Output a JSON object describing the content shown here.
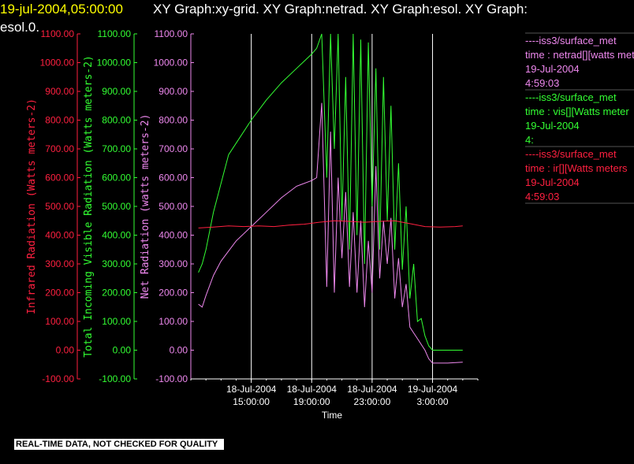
{
  "header": {
    "timestamp": "19-jul-2004,05:00:00",
    "title_rest": "XY Graph:xy-grid.  XY Graph:netrad.  XY Graph:esol.  XY Graph:",
    "title_line2": "esol.0."
  },
  "notice": "REAL-TIME DATA, NOT CHECKED FOR QUALITY",
  "colors": {
    "ir": "#ff2040",
    "vis": "#33ff33",
    "netrad": "#ee88ee",
    "timestamp": "#ffff00",
    "text": "#ffffff",
    "grid": "#ffffff",
    "legend_rule": "#555555"
  },
  "legend": [
    {
      "src": "----iss3/surface_met",
      "var": "time : netrad[][watts met",
      "date": "19-Jul-2004",
      "time": "4:59:03",
      "color": "#ee88ee"
    },
    {
      "src": "----iss3/surface_met",
      "var": "time : vis[][Watts meter",
      "date": "19-Jul-2004",
      "time": "4:",
      "color": "#33ff33"
    },
    {
      "src": "----iss3/surface_met",
      "var": "time : ir[][Watts meters",
      "date": "19-Jul-2004",
      "time": "4:59:03",
      "color": "#ff2040"
    }
  ],
  "chart_data": {
    "type": "line",
    "xlabel": "Time",
    "x_range_hours": [
      "18-Jul-2004 11:00",
      "19-Jul-2004 06:00"
    ],
    "x_ticks": [
      {
        "date": "18-Jul-2004",
        "time": "15:00:00"
      },
      {
        "date": "18-Jul-2004",
        "time": "19:00:00"
      },
      {
        "date": "18-Jul-2004",
        "time": "23:00:00"
      },
      {
        "date": "19-Jul-2004",
        "time": "3:00:00"
      }
    ],
    "y_ticks": [
      "-100.00",
      "0.00",
      "100.00",
      "200.00",
      "300.00",
      "400.00",
      "500.00",
      "600.00",
      "700.00",
      "800.00",
      "900.00",
      "1000.00",
      "1100.00"
    ],
    "ylim": [
      -100,
      1100
    ],
    "grid": "vertical lines at x ticks",
    "axes": [
      {
        "label": "Infrared Radiation (Watts meters-2)",
        "color": "#ff2040"
      },
      {
        "label": "Total Incoming Visible Radiation (Watts meters-2)",
        "color": "#33ff33"
      },
      {
        "label": "Net Radiation (watts meters-2)",
        "color": "#ee88ee"
      }
    ],
    "series": [
      {
        "key": "vis",
        "color": "#33ff33",
        "points": [
          [
            "18-Jul-2004 11:30",
            270
          ],
          [
            "18-Jul-2004 11:45",
            300
          ],
          [
            "18-Jul-2004 12:00",
            350
          ],
          [
            "18-Jul-2004 12:30",
            480
          ],
          [
            "18-Jul-2004 13:00",
            580
          ],
          [
            "18-Jul-2004 13:30",
            680
          ],
          [
            "18-Jul-2004 14:00",
            720
          ],
          [
            "18-Jul-2004 15:00",
            800
          ],
          [
            "18-Jul-2004 16:00",
            870
          ],
          [
            "18-Jul-2004 17:00",
            930
          ],
          [
            "18-Jul-2004 18:00",
            980
          ],
          [
            "18-Jul-2004 19:00",
            1030
          ],
          [
            "18-Jul-2004 19:20",
            1050
          ],
          [
            "18-Jul-2004 19:40",
            1100
          ],
          [
            "18-Jul-2004 20:00",
            600
          ],
          [
            "18-Jul-2004 20:15",
            1100
          ],
          [
            "18-Jul-2004 20:30",
            700
          ],
          [
            "18-Jul-2004 20:45",
            1100
          ],
          [
            "18-Jul-2004 21:00",
            450
          ],
          [
            "18-Jul-2004 21:15",
            950
          ],
          [
            "18-Jul-2004 21:30",
            350
          ],
          [
            "18-Jul-2004 21:45",
            1100
          ],
          [
            "18-Jul-2004 22:00",
            400
          ],
          [
            "18-Jul-2004 22:15",
            1080
          ],
          [
            "18-Jul-2004 22:30",
            300
          ],
          [
            "18-Jul-2004 22:45",
            1070
          ],
          [
            "18-Jul-2004 23:00",
            500
          ],
          [
            "18-Jul-2004 23:15",
            980
          ],
          [
            "18-Jul-2004 23:30",
            350
          ],
          [
            "18-Jul-2004 23:45",
            950
          ],
          [
            "19-Jul-2004 00:00",
            450
          ],
          [
            "19-Jul-2004 00:15",
            850
          ],
          [
            "19-Jul-2004 00:30",
            350
          ],
          [
            "19-Jul-2004 00:45",
            650
          ],
          [
            "19-Jul-2004 01:00",
            280
          ],
          [
            "19-Jul-2004 01:15",
            500
          ],
          [
            "19-Jul-2004 01:30",
            180
          ],
          [
            "19-Jul-2004 01:45",
            300
          ],
          [
            "19-Jul-2004 02:00",
            100
          ],
          [
            "19-Jul-2004 02:15",
            110
          ],
          [
            "19-Jul-2004 02:30",
            50
          ],
          [
            "19-Jul-2004 02:45",
            15
          ],
          [
            "19-Jul-2004 03:00",
            0
          ],
          [
            "19-Jul-2004 04:00",
            0
          ],
          [
            "19-Jul-2004 05:00",
            0
          ]
        ]
      },
      {
        "key": "netrad",
        "color": "#ee88ee",
        "points": [
          [
            "18-Jul-2004 11:30",
            160
          ],
          [
            "18-Jul-2004 11:45",
            150
          ],
          [
            "18-Jul-2004 12:00",
            190
          ],
          [
            "18-Jul-2004 12:30",
            260
          ],
          [
            "18-Jul-2004 13:00",
            310
          ],
          [
            "18-Jul-2004 14:00",
            380
          ],
          [
            "18-Jul-2004 15:00",
            430
          ],
          [
            "18-Jul-2004 16:00",
            480
          ],
          [
            "18-Jul-2004 17:00",
            530
          ],
          [
            "18-Jul-2004 18:00",
            570
          ],
          [
            "18-Jul-2004 19:00",
            590
          ],
          [
            "18-Jul-2004 19:20",
            600
          ],
          [
            "18-Jul-2004 19:40",
            860
          ],
          [
            "18-Jul-2004 20:00",
            220
          ],
          [
            "18-Jul-2004 20:15",
            760
          ],
          [
            "18-Jul-2004 20:30",
            200
          ],
          [
            "18-Jul-2004 20:45",
            600
          ],
          [
            "18-Jul-2004 21:00",
            320
          ],
          [
            "18-Jul-2004 21:15",
            550
          ],
          [
            "18-Jul-2004 21:30",
            220
          ],
          [
            "18-Jul-2004 21:45",
            480
          ],
          [
            "18-Jul-2004 22:00",
            200
          ],
          [
            "18-Jul-2004 22:15",
            450
          ],
          [
            "18-Jul-2004 22:30",
            150
          ],
          [
            "18-Jul-2004 22:45",
            380
          ],
          [
            "18-Jul-2004 23:00",
            200
          ],
          [
            "18-Jul-2004 23:15",
            640
          ],
          [
            "18-Jul-2004 23:30",
            250
          ],
          [
            "18-Jul-2004 23:45",
            450
          ],
          [
            "19-Jul-2004 00:00",
            300
          ],
          [
            "19-Jul-2004 00:15",
            460
          ],
          [
            "19-Jul-2004 00:30",
            180
          ],
          [
            "19-Jul-2004 00:45",
            320
          ],
          [
            "19-Jul-2004 01:00",
            150
          ],
          [
            "19-Jul-2004 01:15",
            230
          ],
          [
            "19-Jul-2004 01:30",
            80
          ],
          [
            "19-Jul-2004 01:45",
            60
          ],
          [
            "19-Jul-2004 02:00",
            40
          ],
          [
            "19-Jul-2004 02:30",
            0
          ],
          [
            "19-Jul-2004 02:45",
            -30
          ],
          [
            "19-Jul-2004 03:00",
            -45
          ],
          [
            "19-Jul-2004 04:00",
            -45
          ],
          [
            "19-Jul-2004 05:00",
            -42
          ]
        ]
      },
      {
        "key": "ir",
        "color": "#ff2040",
        "points": [
          [
            "18-Jul-2004 11:30",
            425
          ],
          [
            "18-Jul-2004 12:30",
            428
          ],
          [
            "18-Jul-2004 13:30",
            432
          ],
          [
            "18-Jul-2004 14:30",
            430
          ],
          [
            "18-Jul-2004 15:30",
            432
          ],
          [
            "18-Jul-2004 16:30",
            430
          ],
          [
            "18-Jul-2004 17:30",
            435
          ],
          [
            "18-Jul-2004 18:30",
            438
          ],
          [
            "18-Jul-2004 19:30",
            445
          ],
          [
            "18-Jul-2004 20:30",
            450
          ],
          [
            "18-Jul-2004 21:30",
            448
          ],
          [
            "18-Jul-2004 22:30",
            445
          ],
          [
            "18-Jul-2004 23:30",
            448
          ],
          [
            "19-Jul-2004 00:30",
            450
          ],
          [
            "19-Jul-2004 01:30",
            440
          ],
          [
            "19-Jul-2004 02:30",
            430
          ],
          [
            "19-Jul-2004 03:30",
            428
          ],
          [
            "19-Jul-2004 04:30",
            430
          ],
          [
            "19-Jul-2004 05:00",
            432
          ]
        ]
      }
    ]
  }
}
